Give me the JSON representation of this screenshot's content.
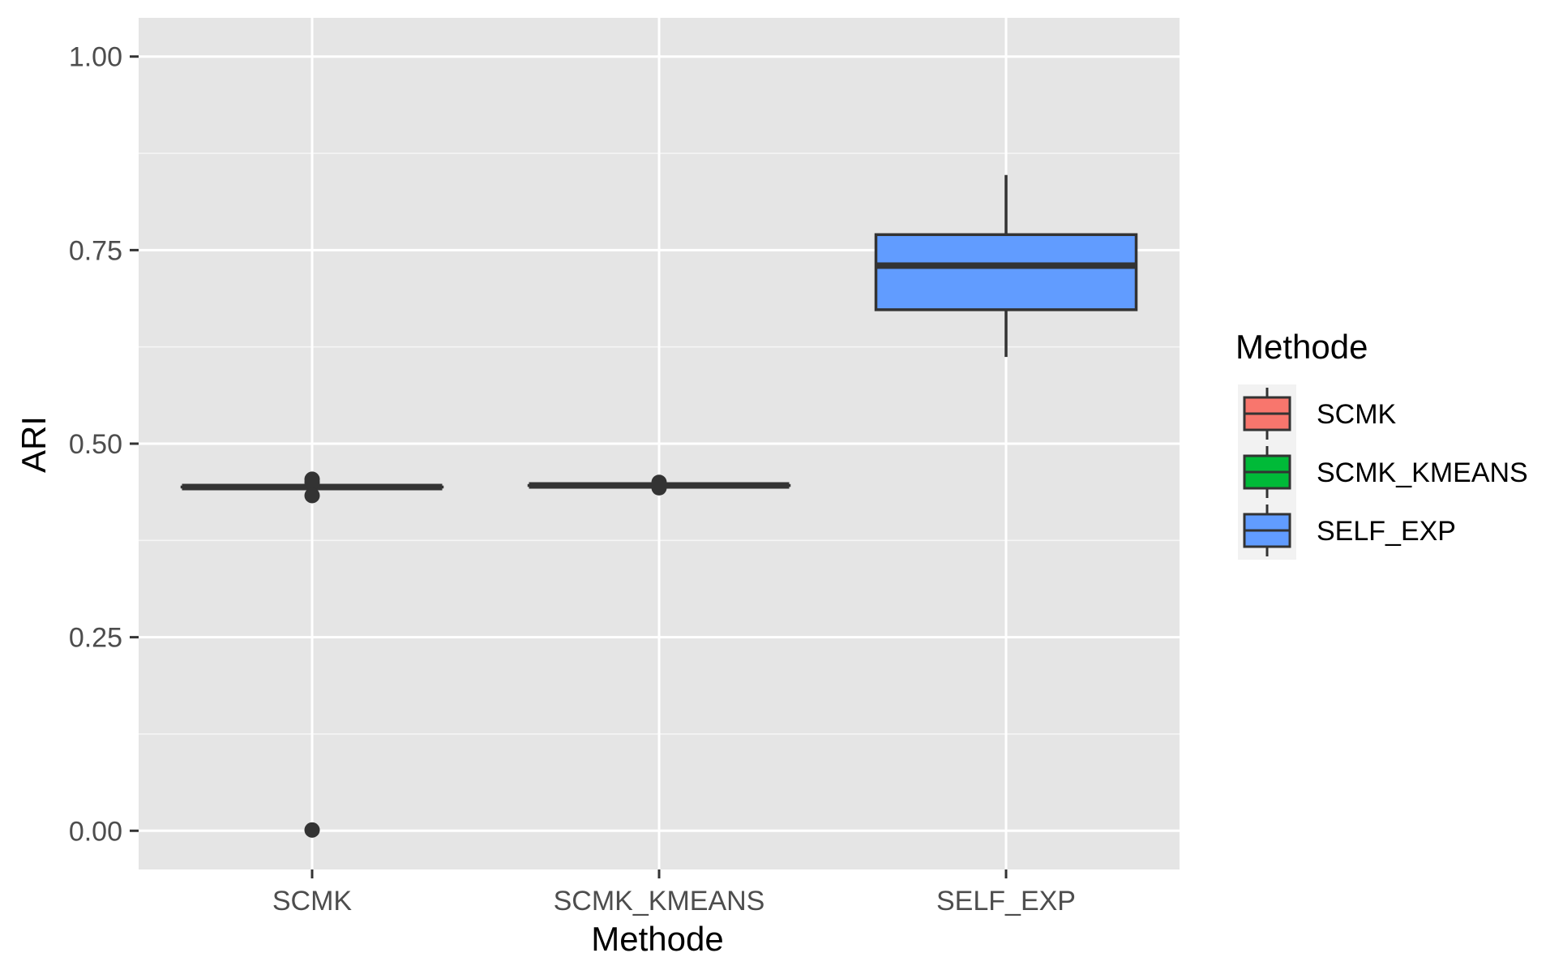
{
  "chart_data": {
    "type": "boxplot",
    "xlabel": "Methode",
    "ylabel": "ARI",
    "ylim": [
      -0.05,
      1.05
    ],
    "yticks": [
      0.0,
      0.25,
      0.5,
      0.75,
      1.0
    ],
    "ytick_labels": [
      "0.00",
      "0.25",
      "0.50",
      "0.75",
      "1.00"
    ],
    "grid": true,
    "categories": [
      "SCMK",
      "SCMK_KMEANS",
      "SELF_EXP"
    ],
    "series": [
      {
        "name": "SCMK",
        "color": "#F8766D",
        "min": 0.444,
        "q1": 0.444,
        "median": 0.444,
        "q3": 0.444,
        "max": 0.444,
        "outliers": [
          0.454,
          0.45,
          0.433,
          0.001
        ]
      },
      {
        "name": "SCMK_KMEANS",
        "color": "#00BA38",
        "min": 0.446,
        "q1": 0.446,
        "median": 0.446,
        "q3": 0.446,
        "max": 0.446,
        "outliers": [
          0.45,
          0.443
        ]
      },
      {
        "name": "SELF_EXP",
        "color": "#619CFF",
        "min": 0.612,
        "q1": 0.673,
        "median": 0.73,
        "q3": 0.77,
        "max": 0.847,
        "outliers": []
      }
    ],
    "legend": {
      "title": "Methode",
      "position": "right"
    }
  }
}
